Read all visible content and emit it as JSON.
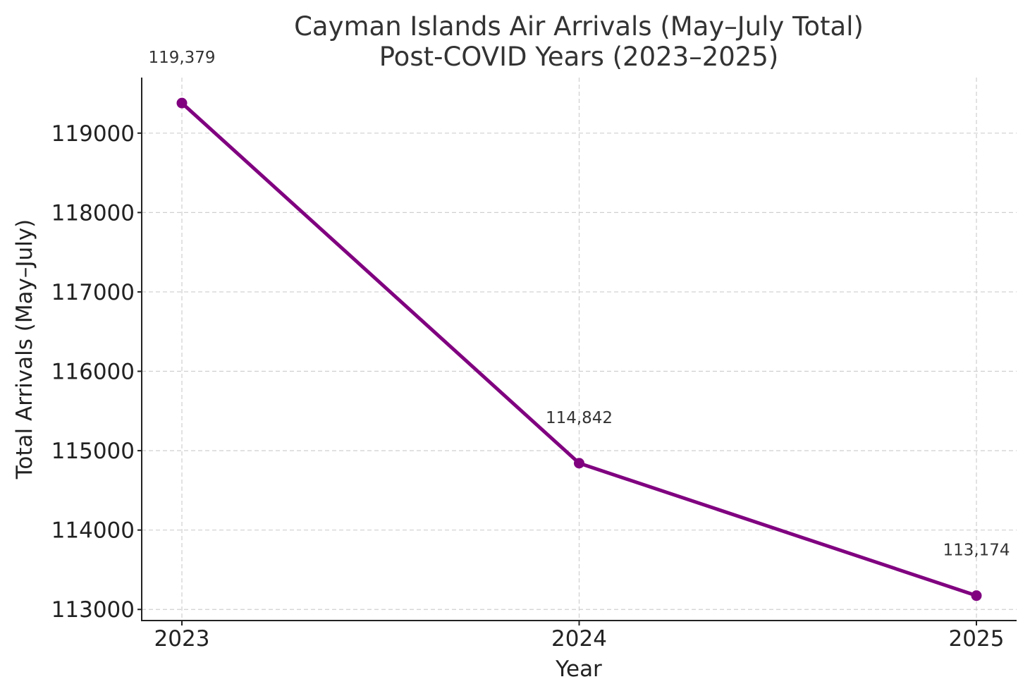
{
  "chart_data": {
    "type": "line",
    "title_lines": [
      "Cayman Islands Air Arrivals (May–July Total)",
      "Post-COVID Years (2023–2025)"
    ],
    "xlabel": "Year",
    "ylabel": "Total Arrivals (May–July)",
    "x": [
      "2023",
      "2024",
      "2025"
    ],
    "y_ticks": [
      113000,
      114000,
      115000,
      116000,
      117000,
      118000,
      119000
    ],
    "ylim": [
      112860,
      119700
    ],
    "grid": true,
    "series": [
      {
        "values": [
          119379,
          114842,
          113174
        ],
        "data_labels": [
          "119,379",
          "114,842",
          "113,174"
        ],
        "color": "#800080"
      }
    ]
  }
}
